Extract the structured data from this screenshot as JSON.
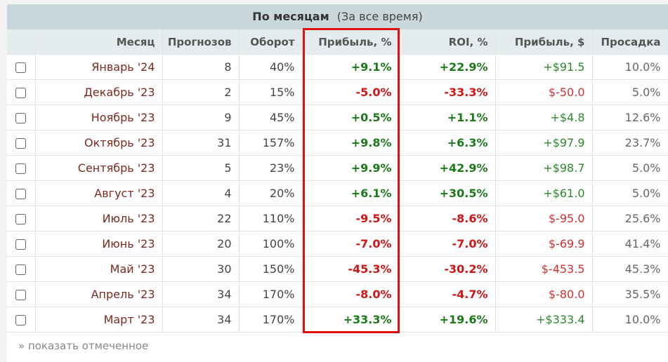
{
  "header": {
    "title": "По месяцам",
    "subtitle": "(За все время)"
  },
  "columns": [
    "Месяц",
    "Прогнозов",
    "Оборот",
    "Прибыль, %",
    "ROI, %",
    "Прибыль, $",
    "Просадка"
  ],
  "rows": [
    {
      "month": "Январь '24",
      "forecasts": "8",
      "turnover": "40%",
      "profit_pct": "+9.1%",
      "roi": "+22.9%",
      "profit_usd": "+$91.5",
      "drawdown": "10.0%"
    },
    {
      "month": "Декабрь '23",
      "forecasts": "2",
      "turnover": "15%",
      "profit_pct": "-5.0%",
      "roi": "-33.3%",
      "profit_usd": "$-50.0",
      "drawdown": "5.0%"
    },
    {
      "month": "Ноябрь '23",
      "forecasts": "9",
      "turnover": "45%",
      "profit_pct": "+0.5%",
      "roi": "+1.1%",
      "profit_usd": "+$4.8",
      "drawdown": "12.6%"
    },
    {
      "month": "Октябрь '23",
      "forecasts": "31",
      "turnover": "157%",
      "profit_pct": "+9.8%",
      "roi": "+6.3%",
      "profit_usd": "+$97.9",
      "drawdown": "23.7%"
    },
    {
      "month": "Сентябрь '23",
      "forecasts": "5",
      "turnover": "23%",
      "profit_pct": "+9.9%",
      "roi": "+42.9%",
      "profit_usd": "+$98.7",
      "drawdown": "5.0%"
    },
    {
      "month": "Август '23",
      "forecasts": "4",
      "turnover": "20%",
      "profit_pct": "+6.1%",
      "roi": "+30.5%",
      "profit_usd": "+$61.0",
      "drawdown": "5.0%"
    },
    {
      "month": "Июль '23",
      "forecasts": "22",
      "turnover": "110%",
      "profit_pct": "-9.5%",
      "roi": "-8.6%",
      "profit_usd": "$-95.0",
      "drawdown": "25.6%"
    },
    {
      "month": "Июнь '23",
      "forecasts": "20",
      "turnover": "100%",
      "profit_pct": "-7.0%",
      "roi": "-7.0%",
      "profit_usd": "$-69.9",
      "drawdown": "41.4%"
    },
    {
      "month": "Май '23",
      "forecasts": "30",
      "turnover": "150%",
      "profit_pct": "-45.3%",
      "roi": "-30.2%",
      "profit_usd": "$-453.5",
      "drawdown": "45.3%"
    },
    {
      "month": "Апрель '23",
      "forecasts": "34",
      "turnover": "170%",
      "profit_pct": "-8.0%",
      "roi": "-4.7%",
      "profit_usd": "$-80.0",
      "drawdown": "35.5%"
    },
    {
      "month": "Март '23",
      "forecasts": "34",
      "turnover": "170%",
      "profit_pct": "+33.3%",
      "roi": "+19.6%",
      "profit_usd": "+$333.4",
      "drawdown": "10.0%"
    }
  ],
  "footer": {
    "show_checked_label": "» показать отмеченное"
  },
  "colors": {
    "header_bg": "#c9d7db",
    "column_header_bg": "#e4ecee",
    "positive": "#1a7a1a",
    "negative": "#d01515",
    "highlight_border": "#e01010"
  }
}
